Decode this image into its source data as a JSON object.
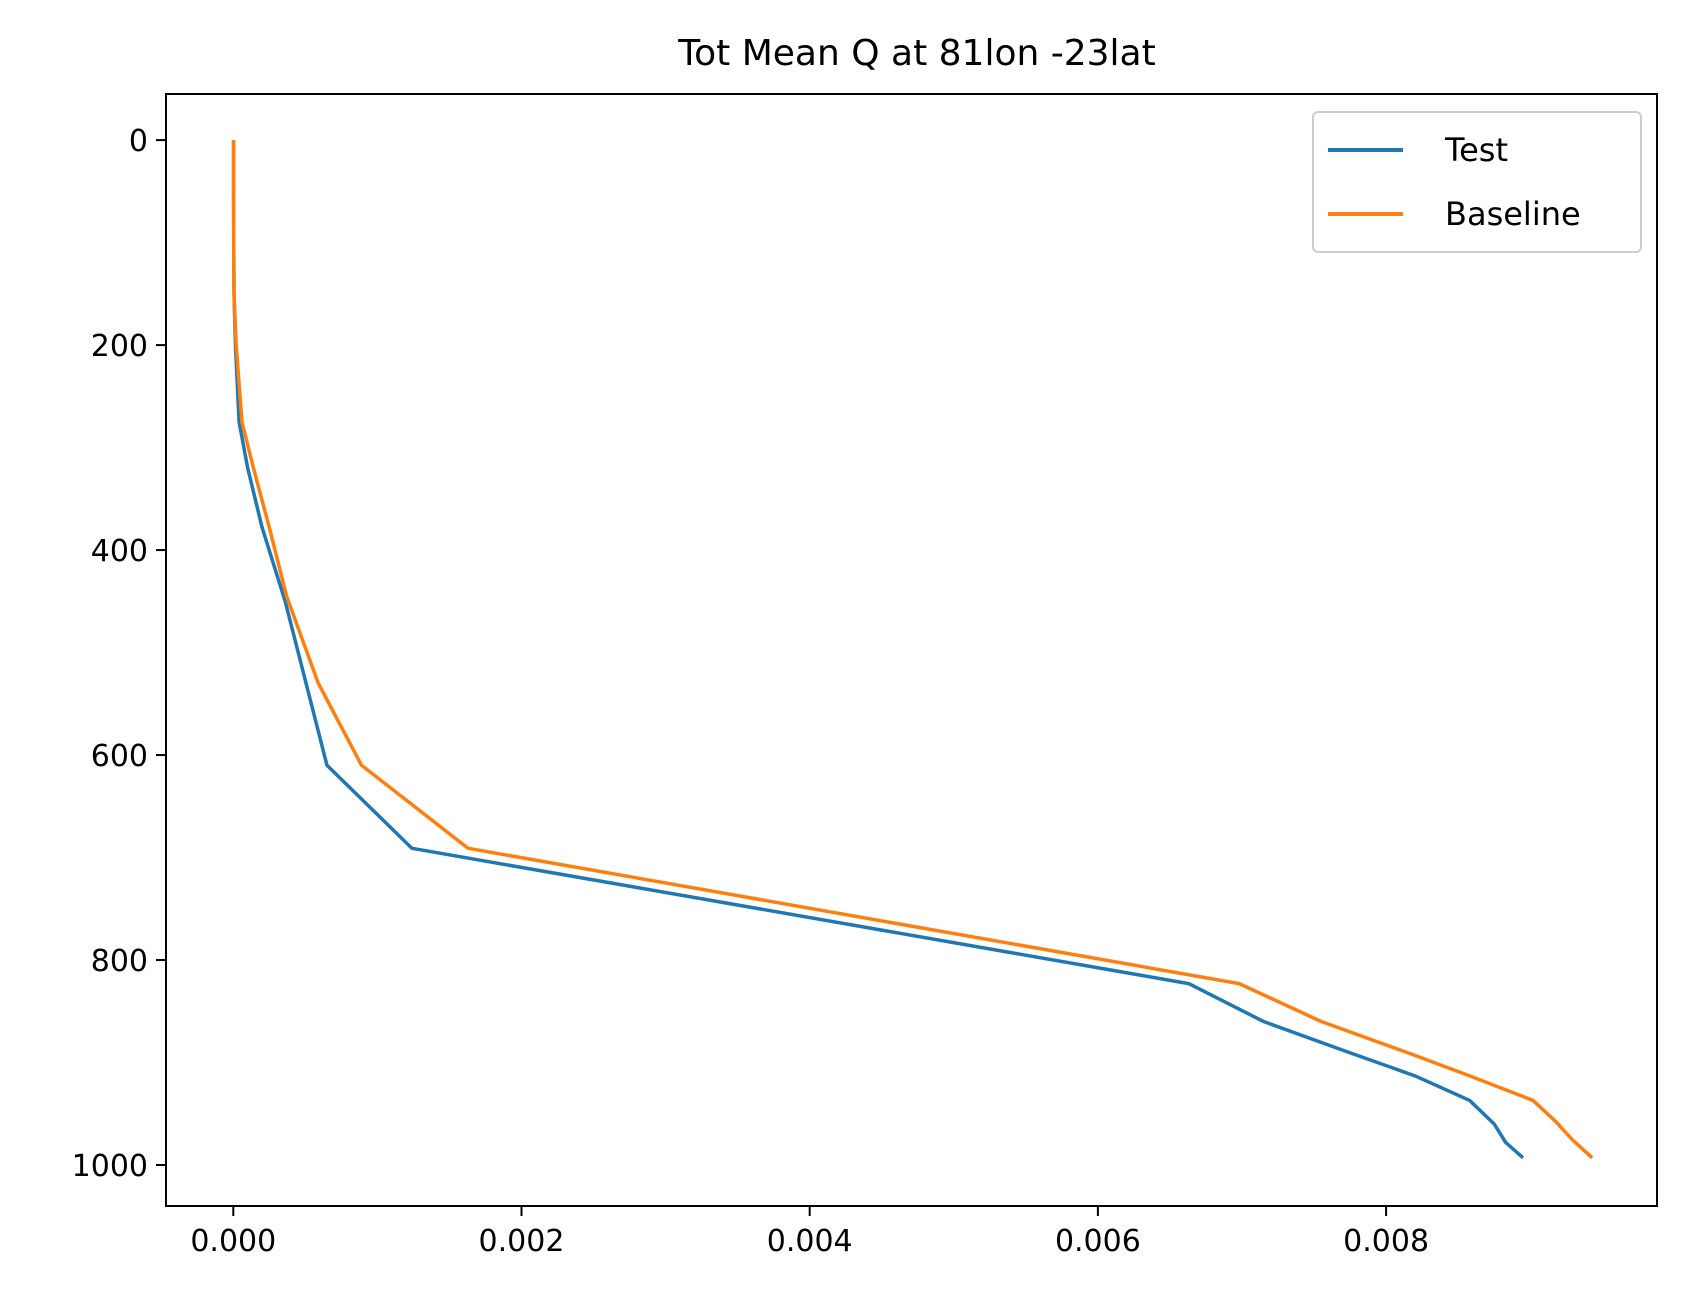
{
  "chart_data": {
    "type": "line",
    "title": "Tot Mean Q at 81lon -23lat",
    "xlabel": "",
    "ylabel": "",
    "xlim": [
      -0.000467,
      0.00988
    ],
    "ylim": [
      1040,
      -45
    ],
    "y_inverted": true,
    "grid": false,
    "legend_position": "upper right",
    "x_ticks": [
      {
        "value": 0.0,
        "label": "0.000"
      },
      {
        "value": 0.002,
        "label": "0.002"
      },
      {
        "value": 0.004,
        "label": "0.004"
      },
      {
        "value": 0.006,
        "label": "0.006"
      },
      {
        "value": 0.008,
        "label": "0.008"
      }
    ],
    "y_ticks": [
      {
        "value": 0,
        "label": "0"
      },
      {
        "value": 200,
        "label": "200"
      },
      {
        "value": 400,
        "label": "400"
      },
      {
        "value": 600,
        "label": "600"
      },
      {
        "value": 800,
        "label": "800"
      },
      {
        "value": 1000,
        "label": "1000"
      }
    ],
    "series": [
      {
        "name": "Test",
        "color": "#1f77b4",
        "points": [
          [
            2e-06,
            0
          ],
          [
            2e-06,
            50
          ],
          [
            3e-06,
            100
          ],
          [
            5e-06,
            150
          ],
          [
            1.5e-05,
            200
          ],
          [
            4e-05,
            275
          ],
          [
            0.0001,
            320
          ],
          [
            0.0002,
            378
          ],
          [
            0.00036,
            450
          ],
          [
            0.00065,
            610
          ],
          [
            0.00124,
            691
          ],
          [
            0.00663,
            823
          ],
          [
            0.00715,
            860
          ],
          [
            0.0077,
            888
          ],
          [
            0.0082,
            913
          ],
          [
            0.00858,
            937
          ],
          [
            0.00875,
            960
          ],
          [
            0.00883,
            978
          ],
          [
            0.00895,
            993
          ]
        ]
      },
      {
        "name": "Baseline",
        "color": "#ff7f0e",
        "points": [
          [
            2e-06,
            0
          ],
          [
            2e-06,
            50
          ],
          [
            3e-06,
            100
          ],
          [
            5e-06,
            150
          ],
          [
            2e-05,
            200
          ],
          [
            6e-05,
            275
          ],
          [
            0.00014,
            320
          ],
          [
            0.00025,
            378
          ],
          [
            0.00037,
            445
          ],
          [
            0.00059,
            530
          ],
          [
            0.00089,
            610
          ],
          [
            0.00163,
            691
          ],
          [
            0.00698,
            823
          ],
          [
            0.00755,
            860
          ],
          [
            0.0082,
            893
          ],
          [
            0.00858,
            913
          ],
          [
            0.00902,
            937
          ],
          [
            0.00918,
            958
          ],
          [
            0.00929,
            975
          ],
          [
            0.00943,
            993
          ]
        ]
      }
    ]
  }
}
